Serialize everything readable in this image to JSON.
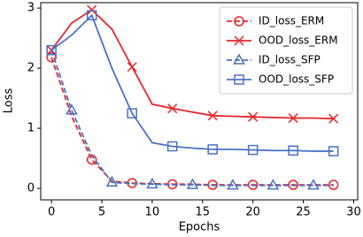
{
  "chart_data": {
    "type": "line",
    "xlabel": "Epochs",
    "ylabel": "Loss",
    "x": [
      0,
      2,
      4,
      6,
      8,
      10,
      12,
      14,
      16,
      18,
      20,
      22,
      24,
      26,
      28
    ],
    "series": [
      {
        "name": "ID_loss_ERM",
        "color": "#e8242b",
        "linestyle": "dashed",
        "marker": "circle",
        "markevery": [
          0,
          2
        ],
        "values": [
          2.18,
          1.2,
          0.48,
          0.12,
          0.09,
          0.08,
          0.07,
          0.07,
          0.06,
          0.06,
          0.06,
          0.06,
          0.06,
          0.06,
          0.06
        ]
      },
      {
        "name": "OOD_loss_ERM",
        "color": "#e8242b",
        "linestyle": "solid",
        "marker": "x",
        "markevery": [
          0,
          2
        ],
        "values": [
          2.3,
          2.75,
          2.97,
          2.65,
          2.02,
          1.4,
          1.33,
          1.27,
          1.21,
          1.2,
          1.19,
          1.18,
          1.17,
          1.17,
          1.16
        ]
      },
      {
        "name": "ID_loss_SFP",
        "color": "#4a72c4",
        "linestyle": "dashed",
        "marker": "triangle",
        "markevery": [
          1,
          2
        ],
        "values": [
          2.3,
          1.3,
          0.55,
          0.1,
          0.08,
          0.07,
          0.06,
          0.06,
          0.05,
          0.05,
          0.05,
          0.05,
          0.05,
          0.05,
          0.05
        ]
      },
      {
        "name": "OOD_loss_SFP",
        "color": "#4a72c4",
        "linestyle": "solid",
        "marker": "square",
        "markevery": [
          0,
          2
        ],
        "values": [
          2.3,
          2.55,
          2.88,
          2.0,
          1.25,
          0.76,
          0.7,
          0.67,
          0.65,
          0.65,
          0.64,
          0.63,
          0.63,
          0.62,
          0.62
        ]
      }
    ],
    "xlim": [
      -1.07,
      30.4
    ],
    "xticks": [
      0,
      5,
      10,
      15,
      20,
      25,
      30
    ],
    "ylim": [
      -0.19,
      3.09
    ],
    "yticks": [
      0,
      1,
      2,
      3
    ],
    "legend": "upper right"
  }
}
